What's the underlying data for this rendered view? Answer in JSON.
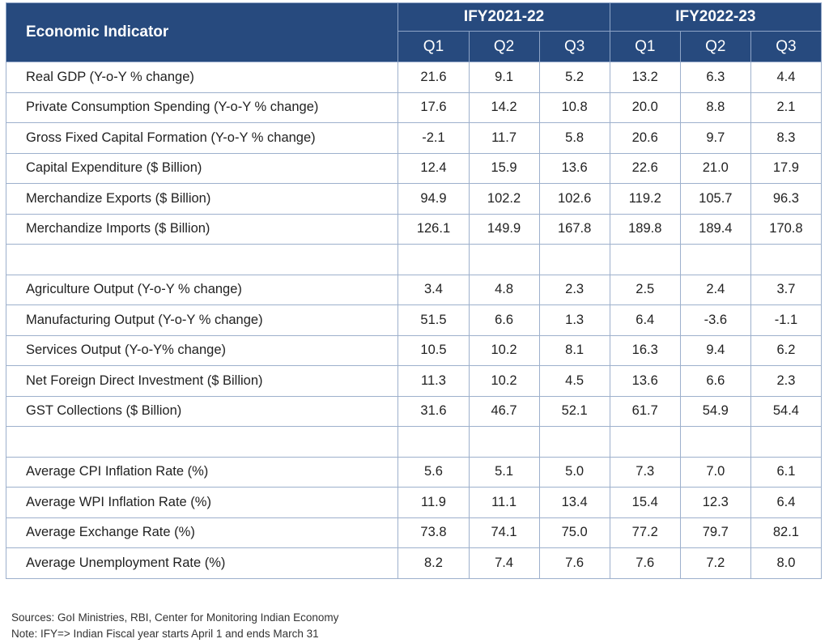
{
  "table": {
    "header": {
      "indicator_label": "Economic Indicator",
      "years": [
        "IFY2021-22",
        "IFY2022-23"
      ],
      "quarters": [
        "Q1",
        "Q2",
        "Q3",
        "Q1",
        "Q2",
        "Q3"
      ]
    },
    "rows": [
      {
        "label": "Real GDP (Y-o-Y % change)",
        "values": [
          "21.6",
          "9.1",
          "5.2",
          "13.2",
          "6.3",
          "4.4"
        ]
      },
      {
        "label": "Private Consumption Spending (Y-o-Y % change)",
        "values": [
          "17.6",
          "14.2",
          "10.8",
          "20.0",
          "8.8",
          "2.1"
        ]
      },
      {
        "label": "Gross Fixed Capital Formation (Y-o-Y % change)",
        "values": [
          "-2.1",
          "11.7",
          "5.8",
          "20.6",
          "9.7",
          "8.3"
        ]
      },
      {
        "label": "Capital Expenditure ($ Billion)",
        "values": [
          "12.4",
          "15.9",
          "13.6",
          "22.6",
          "21.0",
          "17.9"
        ]
      },
      {
        "label": "Merchandize Exports ($ Billion)",
        "values": [
          "94.9",
          "102.2",
          "102.6",
          "119.2",
          "105.7",
          "96.3"
        ]
      },
      {
        "label": "Merchandize Imports ($ Billion)",
        "values": [
          "126.1",
          "149.9",
          "167.8",
          "189.8",
          "189.4",
          "170.8"
        ]
      },
      {
        "spacer": true
      },
      {
        "label": "Agriculture Output (Y-o-Y % change)",
        "values": [
          "3.4",
          "4.8",
          "2.3",
          "2.5",
          "2.4",
          "3.7"
        ]
      },
      {
        "label": "Manufacturing Output (Y-o-Y % change)",
        "values": [
          "51.5",
          "6.6",
          "1.3",
          "6.4",
          "-3.6",
          "-1.1"
        ]
      },
      {
        "label": "Services Output (Y-o-Y% change)",
        "values": [
          "10.5",
          "10.2",
          "8.1",
          "16.3",
          "9.4",
          "6.2"
        ]
      },
      {
        "label": "Net Foreign Direct Investment ($ Billion)",
        "values": [
          "11.3",
          "10.2",
          "4.5",
          "13.6",
          "6.6",
          "2.3"
        ]
      },
      {
        "label": "GST Collections ($ Billion)",
        "values": [
          "31.6",
          "46.7",
          "52.1",
          "61.7",
          "54.9",
          "54.4"
        ]
      },
      {
        "spacer": true
      },
      {
        "label": "Average CPI Inflation Rate (%)",
        "values": [
          "5.6",
          "5.1",
          "5.0",
          "7.3",
          "7.0",
          "6.1"
        ]
      },
      {
        "label": "Average WPI Inflation Rate (%)",
        "values": [
          "11.9",
          "11.1",
          "13.4",
          "15.4",
          "12.3",
          "6.4"
        ]
      },
      {
        "label": "Average Exchange Rate (%)",
        "values": [
          "73.8",
          "74.1",
          "75.0",
          "77.2",
          "79.7",
          "82.1"
        ]
      },
      {
        "label": "Average Unemployment Rate (%)",
        "values": [
          "8.2",
          "7.4",
          "7.6",
          "7.6",
          "7.2",
          "8.0"
        ]
      }
    ]
  },
  "notes": {
    "sources": "Sources: GoI Ministries, RBI, Center for Monitoring Indian Economy",
    "note": "Note: IFY=> Indian Fiscal year starts April 1 and ends March 31"
  },
  "colors": {
    "header_bg": "#274a7e",
    "header_text": "#ffffff",
    "grid": "#9db0cc"
  }
}
